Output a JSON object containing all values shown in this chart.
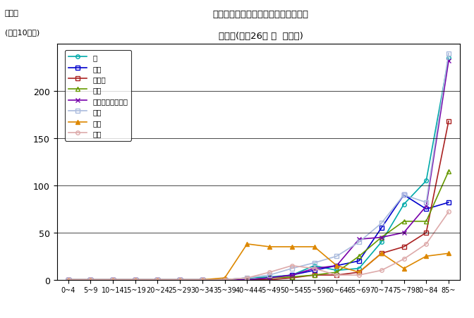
{
  "title_line1": "部位別にみた悪性新生物の年齢階級別",
  "title_line2": "死亡率(平成26年 女  熊本県)",
  "ylabel_line1": "死亡率",
  "ylabel_line2": "(人口10万対)",
  "xlabels": [
    "0~4",
    "5~9",
    "10~14",
    "15~19",
    "20~24",
    "25~29",
    "30~34",
    "35~39",
    "40~44",
    "45~49",
    "50~54",
    "55~59",
    "60~64",
    "65~69",
    "70~74",
    "75~79",
    "80~84",
    "85~"
  ],
  "ylim": [
    0,
    250
  ],
  "yticks": [
    0,
    50,
    100,
    150,
    200
  ],
  "series": [
    {
      "label": "胃",
      "color": "#00AAAA",
      "marker": "o",
      "markersize": 4,
      "linewidth": 1.2,
      "fillstyle": "none",
      "data": [
        0,
        0,
        0,
        0,
        0,
        0,
        0,
        0,
        2,
        3,
        5,
        15,
        10,
        12,
        40,
        80,
        105,
        235
      ]
    },
    {
      "label": "肝臓",
      "color": "#0000CC",
      "marker": "s",
      "markersize": 4,
      "linewidth": 1.2,
      "fillstyle": "none",
      "data": [
        0,
        0,
        0,
        0,
        0,
        0,
        0,
        0,
        0,
        2,
        5,
        10,
        15,
        20,
        55,
        90,
        75,
        82
      ]
    },
    {
      "label": "胆のう",
      "color": "#AA2222",
      "marker": "s",
      "markersize": 4,
      "linewidth": 1.2,
      "fillstyle": "none",
      "data": [
        0,
        0,
        0,
        0,
        0,
        0,
        0,
        0,
        0,
        0,
        2,
        5,
        5,
        8,
        28,
        35,
        50,
        168
      ]
    },
    {
      "label": "膵臓",
      "color": "#669900",
      "marker": "^",
      "markersize": 4,
      "linewidth": 1.2,
      "fillstyle": "none",
      "data": [
        0,
        0,
        0,
        0,
        0,
        0,
        0,
        0,
        0,
        2,
        3,
        5,
        8,
        25,
        45,
        62,
        62,
        115
      ]
    },
    {
      "label": "気管・気管支・肺",
      "color": "#7700AA",
      "marker": "x",
      "markersize": 4,
      "linewidth": 1.2,
      "fillstyle": "full",
      "data": [
        0,
        0,
        0,
        0,
        0,
        0,
        0,
        0,
        0,
        2,
        5,
        12,
        15,
        43,
        45,
        50,
        78,
        232
      ]
    },
    {
      "label": "大腸",
      "color": "#AABBDD",
      "marker": "s",
      "markersize": 4,
      "linewidth": 1.2,
      "fillstyle": "none",
      "data": [
        0,
        0,
        0,
        0,
        0,
        0,
        0,
        0,
        2,
        5,
        12,
        18,
        25,
        40,
        60,
        90,
        82,
        240
      ]
    },
    {
      "label": "乳房",
      "color": "#DD8800",
      "marker": "^",
      "markersize": 5,
      "linewidth": 1.2,
      "fillstyle": "full",
      "data": [
        0,
        0,
        0,
        0,
        0,
        0,
        0,
        2,
        38,
        35,
        35,
        35,
        15,
        8,
        28,
        12,
        25,
        28
      ]
    },
    {
      "label": "子宮",
      "color": "#DDAAAA",
      "marker": "o",
      "markersize": 4,
      "linewidth": 1.2,
      "fillstyle": "none",
      "data": [
        0,
        0,
        0,
        0,
        0,
        0,
        0,
        0,
        2,
        8,
        15,
        12,
        5,
        5,
        10,
        22,
        38,
        72
      ]
    }
  ]
}
